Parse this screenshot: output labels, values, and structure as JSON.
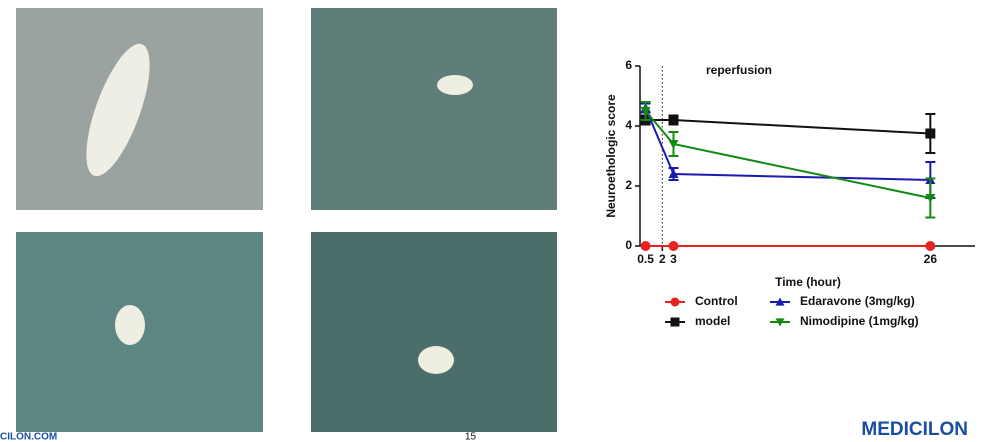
{
  "chart_data": {
    "type": "line",
    "x_label": "Time (hour)",
    "y_label": "Neuroethologic score",
    "annotation": "reperfusion",
    "annotation_x": 2,
    "x": [
      0.5,
      3,
      26
    ],
    "xlim": [
      0,
      30
    ],
    "xticks": [
      0.5,
      2,
      3,
      26
    ],
    "ylim": [
      0,
      6
    ],
    "yticks": [
      0,
      2,
      4,
      6
    ],
    "series": [
      {
        "name": "Control",
        "color": "#e8231f",
        "marker": "circle",
        "values": [
          0,
          0,
          0
        ],
        "errors": [
          0,
          0,
          0
        ]
      },
      {
        "name": "model",
        "color": "#111111",
        "marker": "square",
        "values": [
          4.2,
          4.2,
          3.75
        ],
        "errors": [
          0.15,
          0.15,
          0.65
        ]
      },
      {
        "name": "Edaravone (3mg/kg)",
        "color": "#1b1bb0",
        "marker": "triangle-up",
        "values": [
          4.6,
          2.4,
          2.2
        ],
        "errors": [
          0.15,
          0.2,
          0.6
        ]
      },
      {
        "name": "Nimodipine (1mg/kg)",
        "color": "#138a13",
        "marker": "triangle-down",
        "values": [
          4.5,
          3.4,
          1.6
        ],
        "errors": [
          0.3,
          0.4,
          0.65
        ]
      }
    ]
  },
  "footer": {
    "brand": "MEDICILON",
    "url": "CILON.COM",
    "page": "15"
  }
}
